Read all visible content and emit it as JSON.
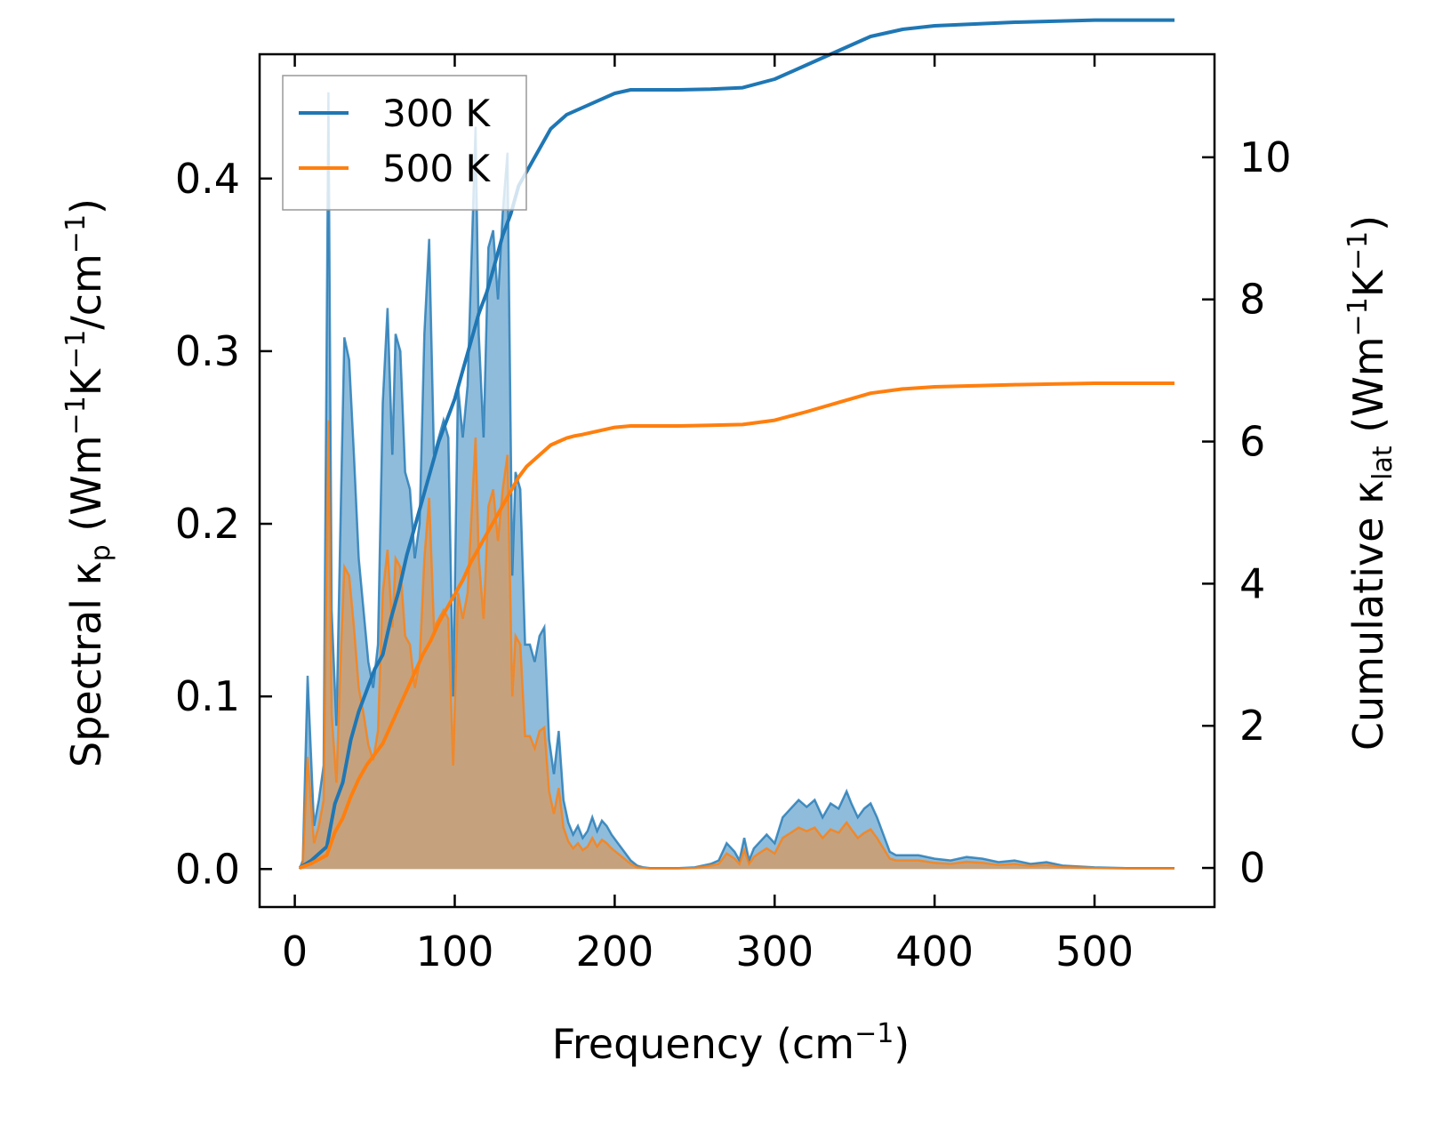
{
  "chart_data": {
    "type": "line",
    "xlabel": {
      "text": "Frequency (cm",
      "sup": "−1",
      "tail": ")"
    },
    "ylabel_left": {
      "prefix": "Spectral κ",
      "sub": "p",
      "mid1": " (Wm",
      "sup1": "−1",
      "mid2": "K",
      "sup2": "−1",
      "mid3": "/cm",
      "sup3": "−1",
      "tail": ")"
    },
    "ylabel_right": {
      "prefix": "Cumulative κ",
      "sub": "lat",
      "mid1": " (Wm",
      "sup1": "−1",
      "mid2": "K",
      "sup2": "−1",
      "tail": ")"
    },
    "xlim": [
      -22,
      575
    ],
    "ylim_left": [
      -0.022,
      0.472
    ],
    "ylim_right": [
      -0.55,
      11.45
    ],
    "x_ticks": [
      0,
      100,
      200,
      300,
      400,
      500
    ],
    "x_tick_labels": [
      "0",
      "100",
      "200",
      "300",
      "400",
      "500"
    ],
    "y_left_ticks": [
      0.0,
      0.1,
      0.2,
      0.3,
      0.4
    ],
    "y_left_tick_labels": [
      "0.0",
      "0.1",
      "0.2",
      "0.3",
      "0.4"
    ],
    "y_right_ticks": [
      0,
      2,
      4,
      6,
      8,
      10
    ],
    "y_right_tick_labels": [
      "0",
      "2",
      "4",
      "6",
      "8",
      "10"
    ],
    "grid": false,
    "legend_position": "top-left",
    "colors": {
      "s300": "#1f77b4",
      "s500": "#ff7f0e",
      "fill300": "#8fbcdb",
      "fill500": "#c8a078"
    },
    "series": [
      {
        "name": "300 K",
        "axis": "left",
        "style": "filled",
        "x": [
          3,
          5,
          8,
          12,
          15,
          18,
          21,
          23,
          26,
          29,
          31,
          34,
          37,
          40,
          43,
          46,
          49,
          52,
          55,
          58,
          61,
          63,
          66,
          69,
          72,
          75,
          78,
          81,
          84,
          87,
          90,
          93,
          96,
          99,
          102,
          105,
          108,
          111,
          113,
          115,
          118,
          121,
          124,
          127,
          130,
          133,
          136,
          138,
          141,
          144,
          147,
          150,
          153,
          156,
          159,
          162,
          165,
          168,
          171,
          174,
          177,
          180,
          183,
          186,
          189,
          192,
          195,
          198,
          202,
          206,
          210,
          214,
          218,
          222,
          230,
          240,
          250,
          260,
          265,
          270,
          275,
          278,
          281,
          284,
          287,
          290,
          295,
          300,
          305,
          310,
          315,
          320,
          325,
          330,
          335,
          340,
          345,
          348,
          352,
          356,
          360,
          364,
          368,
          372,
          376,
          380,
          390,
          400,
          410,
          420,
          430,
          440,
          450,
          460,
          470,
          480,
          500,
          520,
          550
        ],
        "y": [
          0.0,
          0.005,
          0.112,
          0.025,
          0.04,
          0.06,
          0.45,
          0.15,
          0.083,
          0.22,
          0.308,
          0.295,
          0.24,
          0.18,
          0.15,
          0.12,
          0.105,
          0.13,
          0.27,
          0.325,
          0.24,
          0.31,
          0.3,
          0.23,
          0.22,
          0.18,
          0.2,
          0.31,
          0.365,
          0.24,
          0.25,
          0.26,
          0.25,
          0.1,
          0.28,
          0.25,
          0.28,
          0.37,
          0.43,
          0.31,
          0.25,
          0.36,
          0.37,
          0.33,
          0.38,
          0.415,
          0.17,
          0.23,
          0.22,
          0.13,
          0.13,
          0.12,
          0.135,
          0.14,
          0.075,
          0.055,
          0.08,
          0.04,
          0.027,
          0.02,
          0.025,
          0.018,
          0.022,
          0.03,
          0.022,
          0.028,
          0.025,
          0.02,
          0.015,
          0.01,
          0.005,
          0.002,
          0.001,
          0.0005,
          0.0005,
          0.0005,
          0.001,
          0.003,
          0.005,
          0.015,
          0.01,
          0.005,
          0.018,
          0.005,
          0.012,
          0.015,
          0.02,
          0.015,
          0.03,
          0.035,
          0.04,
          0.036,
          0.04,
          0.03,
          0.038,
          0.035,
          0.045,
          0.038,
          0.03,
          0.035,
          0.038,
          0.03,
          0.02,
          0.01,
          0.008,
          0.008,
          0.008,
          0.006,
          0.005,
          0.007,
          0.006,
          0.004,
          0.005,
          0.003,
          0.004,
          0.002,
          0.001,
          0.0005,
          0.0005
        ]
      },
      {
        "name": "500 K",
        "axis": "left",
        "style": "filled",
        "x": [
          3,
          5,
          8,
          12,
          15,
          18,
          21,
          23,
          26,
          29,
          31,
          34,
          37,
          40,
          43,
          46,
          49,
          52,
          55,
          58,
          61,
          63,
          66,
          69,
          72,
          75,
          78,
          81,
          84,
          87,
          90,
          93,
          96,
          99,
          102,
          105,
          108,
          111,
          113,
          115,
          118,
          121,
          124,
          127,
          130,
          133,
          136,
          138,
          141,
          144,
          147,
          150,
          153,
          156,
          159,
          162,
          165,
          168,
          171,
          174,
          177,
          180,
          183,
          186,
          189,
          192,
          195,
          198,
          202,
          206,
          210,
          214,
          218,
          222,
          230,
          240,
          250,
          260,
          265,
          270,
          275,
          278,
          281,
          284,
          287,
          290,
          295,
          300,
          305,
          310,
          315,
          320,
          325,
          330,
          335,
          340,
          345,
          348,
          352,
          356,
          360,
          364,
          368,
          372,
          376,
          380,
          390,
          400,
          410,
          420,
          430,
          440,
          450,
          460,
          470,
          480,
          500,
          520,
          550
        ],
        "y": [
          0.0,
          0.003,
          0.065,
          0.015,
          0.025,
          0.04,
          0.26,
          0.09,
          0.05,
          0.13,
          0.175,
          0.17,
          0.14,
          0.105,
          0.09,
          0.072,
          0.063,
          0.08,
          0.16,
          0.185,
          0.14,
          0.18,
          0.175,
          0.135,
          0.13,
          0.105,
          0.12,
          0.18,
          0.215,
          0.14,
          0.145,
          0.15,
          0.145,
          0.06,
          0.16,
          0.145,
          0.16,
          0.215,
          0.25,
          0.18,
          0.145,
          0.21,
          0.22,
          0.19,
          0.22,
          0.24,
          0.1,
          0.135,
          0.13,
          0.077,
          0.077,
          0.07,
          0.08,
          0.082,
          0.045,
          0.032,
          0.047,
          0.024,
          0.016,
          0.012,
          0.015,
          0.011,
          0.013,
          0.018,
          0.013,
          0.017,
          0.015,
          0.012,
          0.009,
          0.006,
          0.003,
          0.001,
          0.0006,
          0.0003,
          0.0003,
          0.0003,
          0.0006,
          0.002,
          0.003,
          0.009,
          0.006,
          0.003,
          0.011,
          0.003,
          0.007,
          0.009,
          0.012,
          0.009,
          0.018,
          0.021,
          0.024,
          0.022,
          0.024,
          0.018,
          0.023,
          0.021,
          0.027,
          0.023,
          0.018,
          0.021,
          0.023,
          0.018,
          0.012,
          0.006,
          0.005,
          0.005,
          0.005,
          0.0036,
          0.003,
          0.0042,
          0.0036,
          0.0024,
          0.003,
          0.0018,
          0.0024,
          0.0012,
          0.0006,
          0.0003,
          0.0003
        ]
      },
      {
        "name": "300 K",
        "axis": "right",
        "style": "line",
        "x": [
          3,
          10,
          15,
          20,
          25,
          30,
          35,
          40,
          45,
          50,
          55,
          60,
          65,
          70,
          75,
          80,
          85,
          90,
          95,
          100,
          105,
          110,
          115,
          120,
          125,
          130,
          135,
          140,
          145,
          150,
          155,
          160,
          165,
          170,
          175,
          180,
          190,
          200,
          210,
          220,
          240,
          260,
          280,
          300,
          320,
          340,
          360,
          380,
          400,
          450,
          500,
          550
        ],
        "y": [
          0.0,
          0.1,
          0.2,
          0.3,
          0.9,
          1.2,
          1.8,
          2.2,
          2.5,
          2.8,
          3.0,
          3.5,
          3.9,
          4.4,
          4.8,
          5.2,
          5.6,
          6.0,
          6.3,
          6.6,
          7.0,
          7.4,
          7.8,
          8.1,
          8.5,
          8.9,
          9.2,
          9.6,
          9.8,
          10.0,
          10.2,
          10.4,
          10.5,
          10.6,
          10.65,
          10.7,
          10.8,
          10.9,
          10.95,
          10.95,
          10.95,
          10.96,
          10.98,
          11.1,
          11.3,
          11.5,
          11.7,
          11.8,
          11.85,
          11.9,
          11.93,
          11.93
        ]
      },
      {
        "name": "500 K",
        "axis": "right",
        "style": "line",
        "x": [
          3,
          10,
          15,
          20,
          25,
          30,
          35,
          40,
          45,
          50,
          55,
          60,
          65,
          70,
          75,
          80,
          85,
          90,
          95,
          100,
          105,
          110,
          115,
          120,
          125,
          130,
          135,
          140,
          145,
          150,
          155,
          160,
          165,
          170,
          175,
          180,
          190,
          200,
          210,
          220,
          240,
          260,
          280,
          300,
          320,
          340,
          360,
          380,
          400,
          450,
          500,
          550
        ],
        "y": [
          0.0,
          0.06,
          0.12,
          0.18,
          0.5,
          0.7,
          1.0,
          1.25,
          1.45,
          1.6,
          1.75,
          2.0,
          2.25,
          2.5,
          2.75,
          3.0,
          3.2,
          3.45,
          3.65,
          3.85,
          4.05,
          4.3,
          4.5,
          4.7,
          4.9,
          5.1,
          5.3,
          5.5,
          5.65,
          5.75,
          5.85,
          5.95,
          6.0,
          6.05,
          6.08,
          6.1,
          6.15,
          6.2,
          6.22,
          6.22,
          6.22,
          6.23,
          6.24,
          6.3,
          6.42,
          6.55,
          6.68,
          6.74,
          6.77,
          6.8,
          6.82,
          6.82
        ]
      }
    ]
  }
}
